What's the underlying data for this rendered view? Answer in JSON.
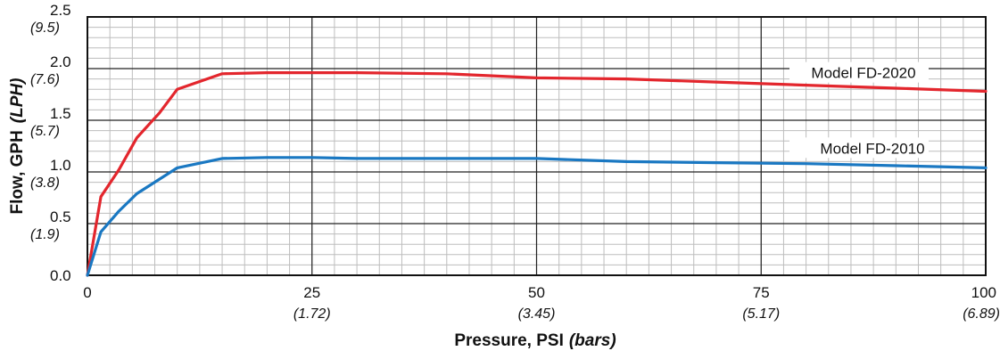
{
  "chart_data": {
    "type": "line",
    "xlabel": "Pressure, PSI",
    "xlabel_unit": "(bars)",
    "ylabel": "Flow, GPH",
    "ylabel_unit": "(LPH)",
    "xlim": [
      0,
      100
    ],
    "ylim": [
      0,
      2.5
    ],
    "grid": true,
    "x_ticks": [
      {
        "value": 0,
        "label": "0",
        "sublabel": ""
      },
      {
        "value": 25,
        "label": "25",
        "sublabel": "(1.72)"
      },
      {
        "value": 50,
        "label": "50",
        "sublabel": "(3.45)"
      },
      {
        "value": 75,
        "label": "75",
        "sublabel": "(5.17)"
      },
      {
        "value": 100,
        "label": "100",
        "sublabel": "(6.89)"
      }
    ],
    "y_ticks": [
      {
        "value": 0,
        "label": "0.0",
        "sublabel": ""
      },
      {
        "value": 0.5,
        "label": "0.5",
        "sublabel": "(1.9)"
      },
      {
        "value": 1.0,
        "label": "1.0",
        "sublabel": "(3.8)"
      },
      {
        "value": 1.5,
        "label": "1.5",
        "sublabel": "(5.7)"
      },
      {
        "value": 2.0,
        "label": "2.0",
        "sublabel": "(7.6)"
      },
      {
        "value": 2.5,
        "label": "2.5",
        "sublabel": "(9.5)"
      }
    ],
    "series": [
      {
        "name": "Model FD-2020",
        "color": "#e3262d",
        "x": [
          0,
          1.5,
          3.5,
          5.5,
          8,
          10,
          15,
          20,
          25,
          30,
          40,
          50,
          60,
          70,
          80,
          90,
          100
        ],
        "y": [
          0,
          0.76,
          1.02,
          1.33,
          1.57,
          1.8,
          1.95,
          1.96,
          1.96,
          1.96,
          1.95,
          1.91,
          1.9,
          1.87,
          1.84,
          1.81,
          1.78
        ]
      },
      {
        "name": "Model FD-2010",
        "color": "#1a78c2",
        "x": [
          0,
          1.5,
          3.5,
          5.5,
          10,
          15,
          20,
          25,
          30,
          40,
          50,
          60,
          70,
          80,
          90,
          100
        ],
        "y": [
          0,
          0.42,
          0.62,
          0.79,
          1.04,
          1.13,
          1.14,
          1.14,
          1.13,
          1.13,
          1.13,
          1.1,
          1.09,
          1.08,
          1.06,
          1.04
        ]
      }
    ]
  }
}
